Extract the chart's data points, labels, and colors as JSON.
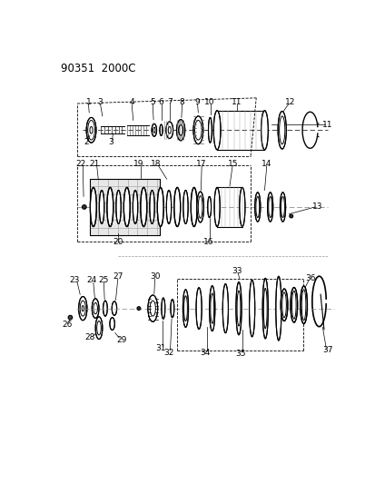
{
  "title": "90351  2000C",
  "bg_color": "#ffffff",
  "fg_color": "#000000",
  "fig_width": 4.14,
  "fig_height": 5.33,
  "dpi": 100
}
